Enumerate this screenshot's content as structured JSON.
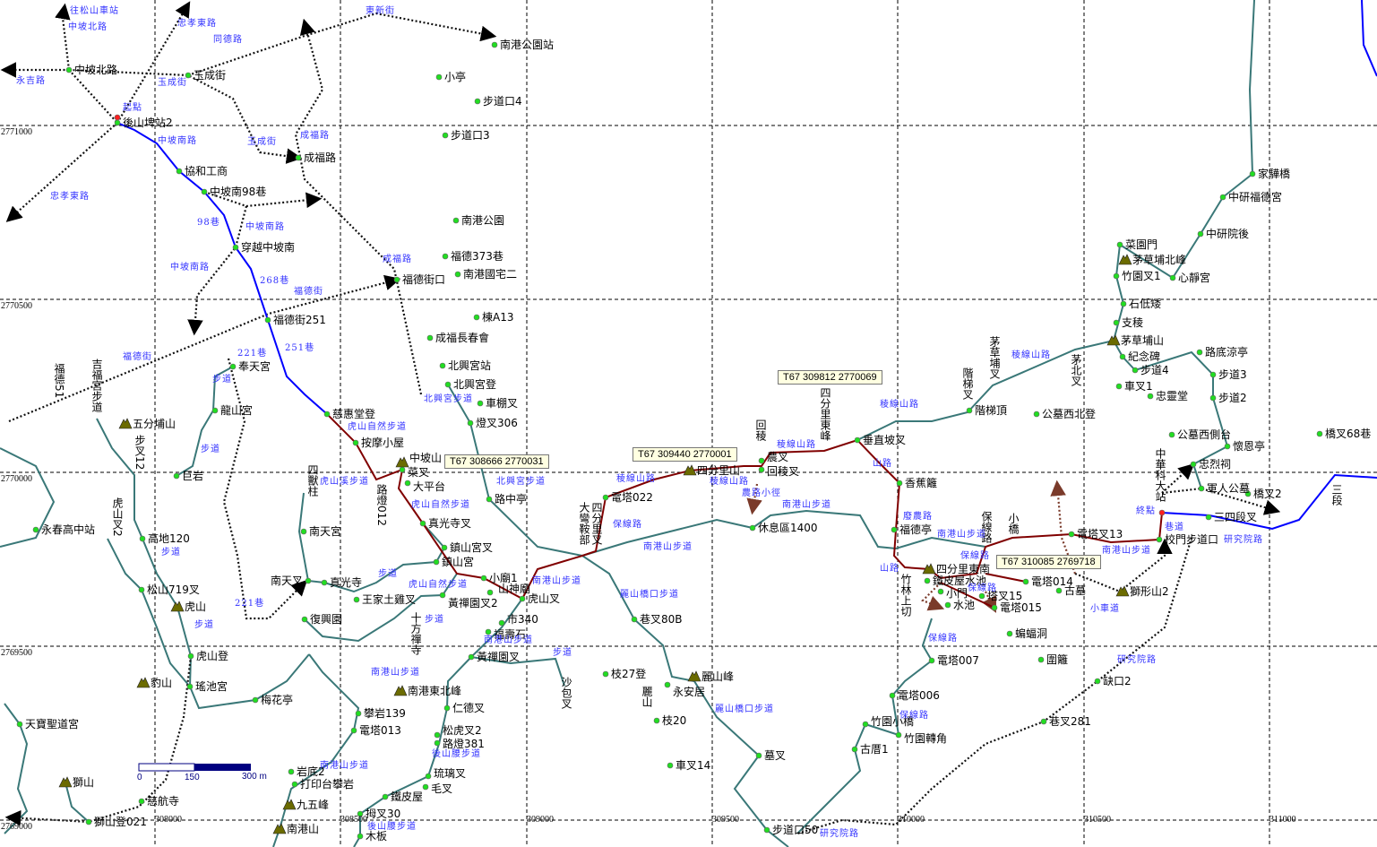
{
  "colors": {
    "route_blue": "#0000ff",
    "route_red": "#800000",
    "trail": "#3a7878",
    "road": "#000000",
    "point": "#22dd22",
    "road_label": "#3333ff",
    "peak": "#6b6b00"
  },
  "grid": {
    "x_labels": [
      "308000",
      "308500",
      "309000",
      "309500",
      "310000",
      "310500",
      "311000"
    ],
    "y_labels": [
      "2771000",
      "2770500",
      "2770000",
      "2769500",
      "2769000"
    ]
  },
  "coord_boxes": [
    "T67  308666  2770031",
    "T67  309440  2770001",
    "T67  309812  2770069",
    "T67  310085  2769718"
  ],
  "scale": {
    "labels": [
      "0",
      "150",
      "300 m"
    ]
  },
  "points": [
    "中坡北路",
    "玉成街",
    "後山埤站2",
    "協和工商",
    "中坡南98巷",
    "穿越中坡南",
    "福德街251",
    "南港公園站",
    "小亭",
    "步道口4",
    "步道口3",
    "成福路",
    "南港公園",
    "福德373巷",
    "南港國宅二",
    "福德街口",
    "棟A13",
    "成福長春會",
    "北興宮站",
    "北興宮登",
    "車棚叉",
    "燈叉306",
    "奉天宮",
    "龍山宮",
    "慈惠堂登",
    "按摩小屋",
    "巨岩",
    "永春高中站",
    "高地120",
    "松山719叉",
    "虎山登",
    "瑤池宮",
    "梅花亭",
    "天寶聖道宮",
    "慈航寺",
    "獅山登021",
    "南天宮",
    "南天叉",
    "真光寺",
    "復興園",
    "王家土雞叉",
    "菜叉",
    "大平台",
    "真光寺叉",
    "鎮山宮叉",
    "鎮山宮",
    "小廟1",
    "黃禪園叉2",
    "山神廟",
    "虎山叉",
    "市340",
    "福壽石",
    "黃禪園叉",
    "攀岩139",
    "電塔013",
    "仁德叉",
    "松虎叉2",
    "路燈381",
    "琉璃叉",
    "毛叉",
    "鐵皮屋",
    "岩底2",
    "打印台攀岩",
    "拇叉30",
    "木板",
    "路中亭",
    "電塔022",
    "休息區1400",
    "農叉",
    "回稜叉",
    "垂直坡叉",
    "香蕉籬",
    "福德亭",
    "鐵皮屋水池",
    "小門",
    "水池",
    "塔叉15",
    "電塔015",
    "電塔014",
    "古墓",
    "蝙蝠洞",
    "圍籬",
    "電塔007",
    "電塔006",
    "竹園小橋",
    "竹園轉角",
    "古厝1",
    "墓叉",
    "枝27登",
    "永安居",
    "枝20",
    "車叉14",
    "巷叉80B",
    "步道口50",
    "家驊橋",
    "中研福德宮",
    "中研院後",
    "菜園門",
    "竹園叉1",
    "心靜宮",
    "石低矮",
    "支稜",
    "紀念碑",
    "步道4",
    "車叉1",
    "忠靈堂",
    "路底涼亭",
    "步道3",
    "步道2",
    "公墓西側台",
    "懷恩亭",
    "忠烈祠",
    "軍人公墓",
    "橋叉2",
    "三四段叉",
    "校門步道口",
    "橋叉68巷",
    "公墓西北登",
    "階梯頂",
    "電塔叉13",
    "缺口2",
    "巷叉281"
  ],
  "vertical_points": [
    "步叉12",
    "虎山叉2",
    "福德51",
    "吉福宮步道",
    "十方禪寺",
    "四獸柱",
    "路燈012",
    "大彎鞍部",
    "四分里叉",
    "回稜",
    "四分里東峰",
    "竹林上切",
    "階梯叉",
    "茅草埔叉",
    "茅北叉",
    "小橋",
    "保線路",
    "麗山",
    "沙包叉",
    "中華科大站",
    "三段"
  ],
  "peaks": [
    "五分埔山",
    "虎山",
    "豹山",
    "獅山",
    "中坡山",
    "南港東北峰",
    "九五峰",
    "南港山",
    "四分里山",
    "麗山峰",
    "四分里東南",
    "茅草埔北峰",
    "茅草埔山",
    "獅形山2"
  ],
  "start_label": "起點",
  "end_label": "終點",
  "road_labels": [
    "往松山車站",
    "中坡北路",
    "永吉路",
    "忠孝東路",
    "同德路",
    "東新街",
    "玉成街",
    "中坡南路",
    "玉成街",
    "成福路",
    "忠孝東路",
    "98巷",
    "中坡南路",
    "中坡南路",
    "268巷",
    "福德街",
    "成福路",
    "221巷",
    "251巷",
    "福德街",
    "步道",
    "北興宮步道",
    "虎山自然步道",
    "步道",
    "虎山溪步道",
    "北興宮步道",
    "虎山自然步道",
    "步道",
    "步道",
    "虎山自然步道",
    "步道",
    "221巷",
    "步道",
    "南港山步道",
    "南港山步道",
    "南港山步道",
    "後山腰步道",
    "後山腰步道",
    "步道",
    "稜線山路",
    "保線路",
    "南港山步道",
    "南港山步道",
    "麗山橋口步道",
    "稜線山路",
    "農路小徑",
    "南港山步道",
    "稜線山路",
    "山路",
    "稜線山路",
    "稜線山路",
    "廢農路",
    "南港山步道",
    "保線路",
    "山路",
    "保線路",
    "南港山步道",
    "巷道",
    "研究院路",
    "小車道",
    "保線路",
    "保線路",
    "研究院路",
    "麗山橋口步道",
    "研究院路"
  ]
}
